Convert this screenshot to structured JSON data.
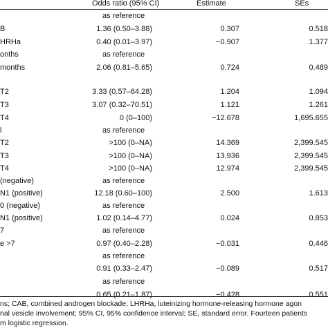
{
  "header": {
    "col_or": "Odds ratio (95% CI)",
    "col_est": "Estimate",
    "col_se": "SEs"
  },
  "rows": [
    {
      "label": "",
      "or": "as reference",
      "est": "",
      "se": "",
      "ref": true
    },
    {
      "label": "B",
      "or": "1.36 (0.50–3.88)",
      "est": "0.307",
      "se": "0.518"
    },
    {
      "label": "HRHa",
      "or": "0.40 (0.01–3.97)",
      "est": "−0.907",
      "se": "1.377"
    },
    {
      "label": "onths",
      "or": "as reference",
      "est": "",
      "se": "",
      "ref": true
    },
    {
      "label": "months",
      "or": "2.06 (0.81–5.65)",
      "est": "0.724",
      "se": "0.489"
    },
    {
      "label": "T2",
      "or": "3.33 (0.57–64.28)",
      "est": "1.204",
      "se": "1.094"
    },
    {
      "label": "T3",
      "or": "3.07 (0.32–70.51)",
      "est": "1.121",
      "se": "1.261"
    },
    {
      "label": "T4",
      "or": "0 (0–100)",
      "est": "−12.678",
      "se": "1,695.655"
    },
    {
      "label": "l",
      "or": "as reference",
      "est": "",
      "se": "",
      "ref": true
    },
    {
      "label": "T2",
      "or": ">100 (0–NA)",
      "est": "14.369",
      "se": "2,399.545"
    },
    {
      "label": "T3",
      "or": ">100 (0–NA)",
      "est": "13.936",
      "se": "2,399.545"
    },
    {
      "label": "T4",
      "or": ">100 (0–NA)",
      "est": "12.974",
      "se": "2,399.545"
    },
    {
      "label": "(negative)",
      "or": "as reference",
      "est": "",
      "se": "",
      "ref": true
    },
    {
      "label": "N1 (positive)",
      "or": "12.18 (0.60–100)",
      "est": "2.500",
      "se": "1.613"
    },
    {
      "label": "0 (negative)",
      "or": "as reference",
      "est": "",
      "se": "",
      "ref": true
    },
    {
      "label": "N1 (positive)",
      "or": "1.02 (0.14–4.77)",
      "est": "0.024",
      "se": "0.853"
    },
    {
      "label": "7",
      "or": "as reference",
      "est": "",
      "se": "",
      "ref": true
    },
    {
      "label": "e >7",
      "or": "0.97 (0.40–2.28)",
      "est": "−0.031",
      "se": "0.446"
    },
    {
      "label": "",
      "or": "as reference",
      "est": "",
      "se": "",
      "ref": true
    },
    {
      "label": "",
      "or": "0.91 (0.33–2.47)",
      "est": "−0.089",
      "se": "0.517"
    },
    {
      "label": "",
      "or": "as reference",
      "est": "",
      "se": "",
      "ref": true
    },
    {
      "label": "",
      "or": "0.65 (0.21–1.87)",
      "est": "−0.428",
      "se": "0.551"
    }
  ],
  "footnote": [
    "ns; CAB, combined androgen blockade; LHRHa, luteinizing hormone-releasing hormone agon",
    "nal vesicle involvement; 95% CI, 95% confidence interval; SE, standard error. Fourteen patients",
    "m logistic regression."
  ]
}
